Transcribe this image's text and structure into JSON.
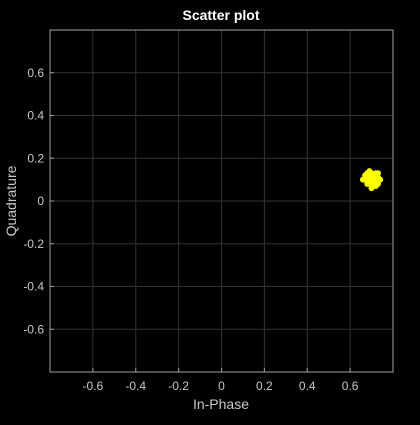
{
  "chart_data": {
    "type": "scatter",
    "title": "Scatter plot",
    "x_label": "In-Phase",
    "y_label": "Quadrature",
    "xlim": [
      -0.8,
      0.8
    ],
    "ylim": [
      -0.8,
      0.8
    ],
    "xticks": [
      -0.6,
      -0.4,
      -0.2,
      0,
      0.2,
      0.4,
      0.6
    ],
    "yticks": [
      -0.6,
      -0.4,
      -0.2,
      0,
      0.2,
      0.4,
      0.6
    ],
    "grid": true,
    "series": [
      {
        "color": "#ffff00",
        "x": [
          0.7,
          0.71,
          0.69,
          0.72,
          0.68,
          0.7,
          0.73,
          0.67,
          0.71,
          0.69,
          0.72,
          0.7,
          0.68,
          0.74,
          0.66,
          0.71,
          0.7,
          0.69,
          0.73,
          0.68,
          0.72,
          0.7,
          0.71,
          0.69,
          0.67,
          0.73,
          0.7,
          0.72,
          0.68,
          0.71
        ],
        "values": [
          0.1,
          0.12,
          0.08,
          0.09,
          0.11,
          0.13,
          0.11,
          0.1,
          0.07,
          0.12,
          0.13,
          0.07,
          0.08,
          0.1,
          0.1,
          0.1,
          0.09,
          0.14,
          0.08,
          0.13,
          0.11,
          0.11,
          0.12,
          0.1,
          0.12,
          0.13,
          0.06,
          0.07,
          0.09,
          0.08
        ]
      }
    ]
  }
}
